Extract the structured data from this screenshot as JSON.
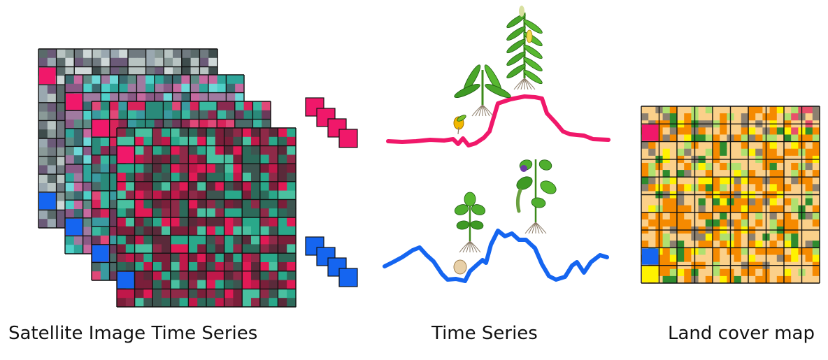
{
  "captions": {
    "satellite": "Satellite Image Time Series",
    "time_series": "Time Series",
    "land_cover": "Land cover map"
  },
  "colors": {
    "series_a": "#f0186a",
    "series_b": "#1565f0",
    "grid": "#111111",
    "land_cover_palette": [
      "#f58a00",
      "#fbd08a",
      "#fff200",
      "#b0e070",
      "#8c8070",
      "#2e8b2e",
      "#e8506a",
      "#3040c0"
    ]
  },
  "icons": {
    "satellite_stack": "satellite-image-stack-icon",
    "pixel_sequence": "pixel-sequence-icon",
    "plant_growth": "plant-growth-icon",
    "land_cover_map": "land-cover-map-icon"
  }
}
